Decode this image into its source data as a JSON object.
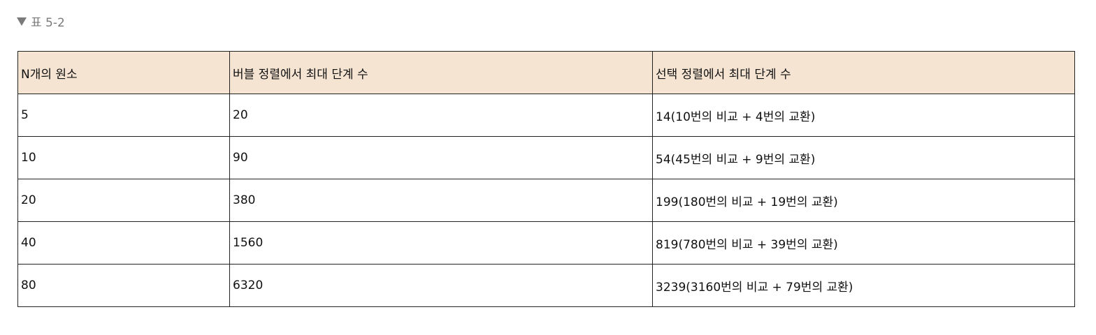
{
  "caption": {
    "icon": "triangle-down-icon",
    "text": "표 5-2"
  },
  "table": {
    "headers": [
      "N개의 원소",
      "버블 정렬에서 최대 단계 수",
      "선택 정렬에서 최대 단계 수"
    ],
    "header_bg": "#f5e4d2",
    "rows": [
      [
        "5",
        "20",
        "14(10번의 비교 + 4번의 교환)"
      ],
      [
        "10",
        "90",
        "54(45번의 비교 + 9번의 교환)"
      ],
      [
        "20",
        "380",
        "199(180번의 비교 + 19번의 교환)"
      ],
      [
        "40",
        "1560",
        "819(780번의 비교 + 39번의 교환)"
      ],
      [
        "80",
        "6320",
        "3239(3160번의 비교 + 79번의 교환)"
      ]
    ]
  }
}
